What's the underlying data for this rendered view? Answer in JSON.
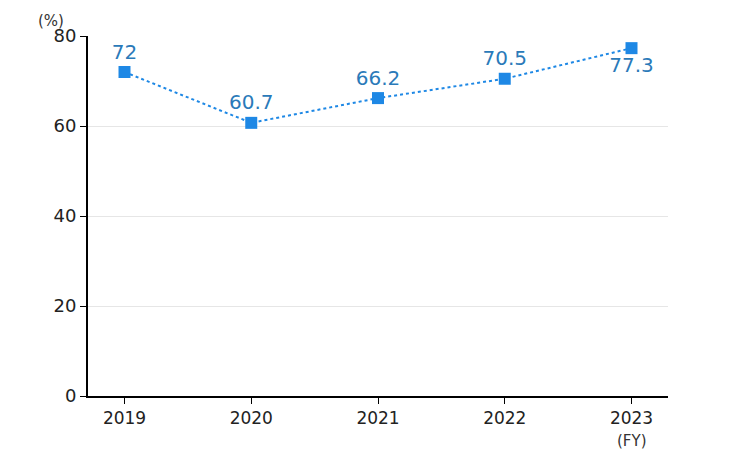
{
  "chart_data": {
    "type": "line",
    "categories": [
      "2019",
      "2020",
      "2021",
      "2022",
      "2023"
    ],
    "values": [
      72,
      60.7,
      66.2,
      70.5,
      77.3
    ],
    "color": "#1e88e5",
    "marker": "square",
    "line_style": "dot",
    "data_labels": true,
    "y_label": "(%)",
    "x_label": "(FY)",
    "ylim": [
      0,
      80
    ],
    "yticks": [
      0,
      20,
      40,
      60,
      80
    ],
    "grid": true
  }
}
